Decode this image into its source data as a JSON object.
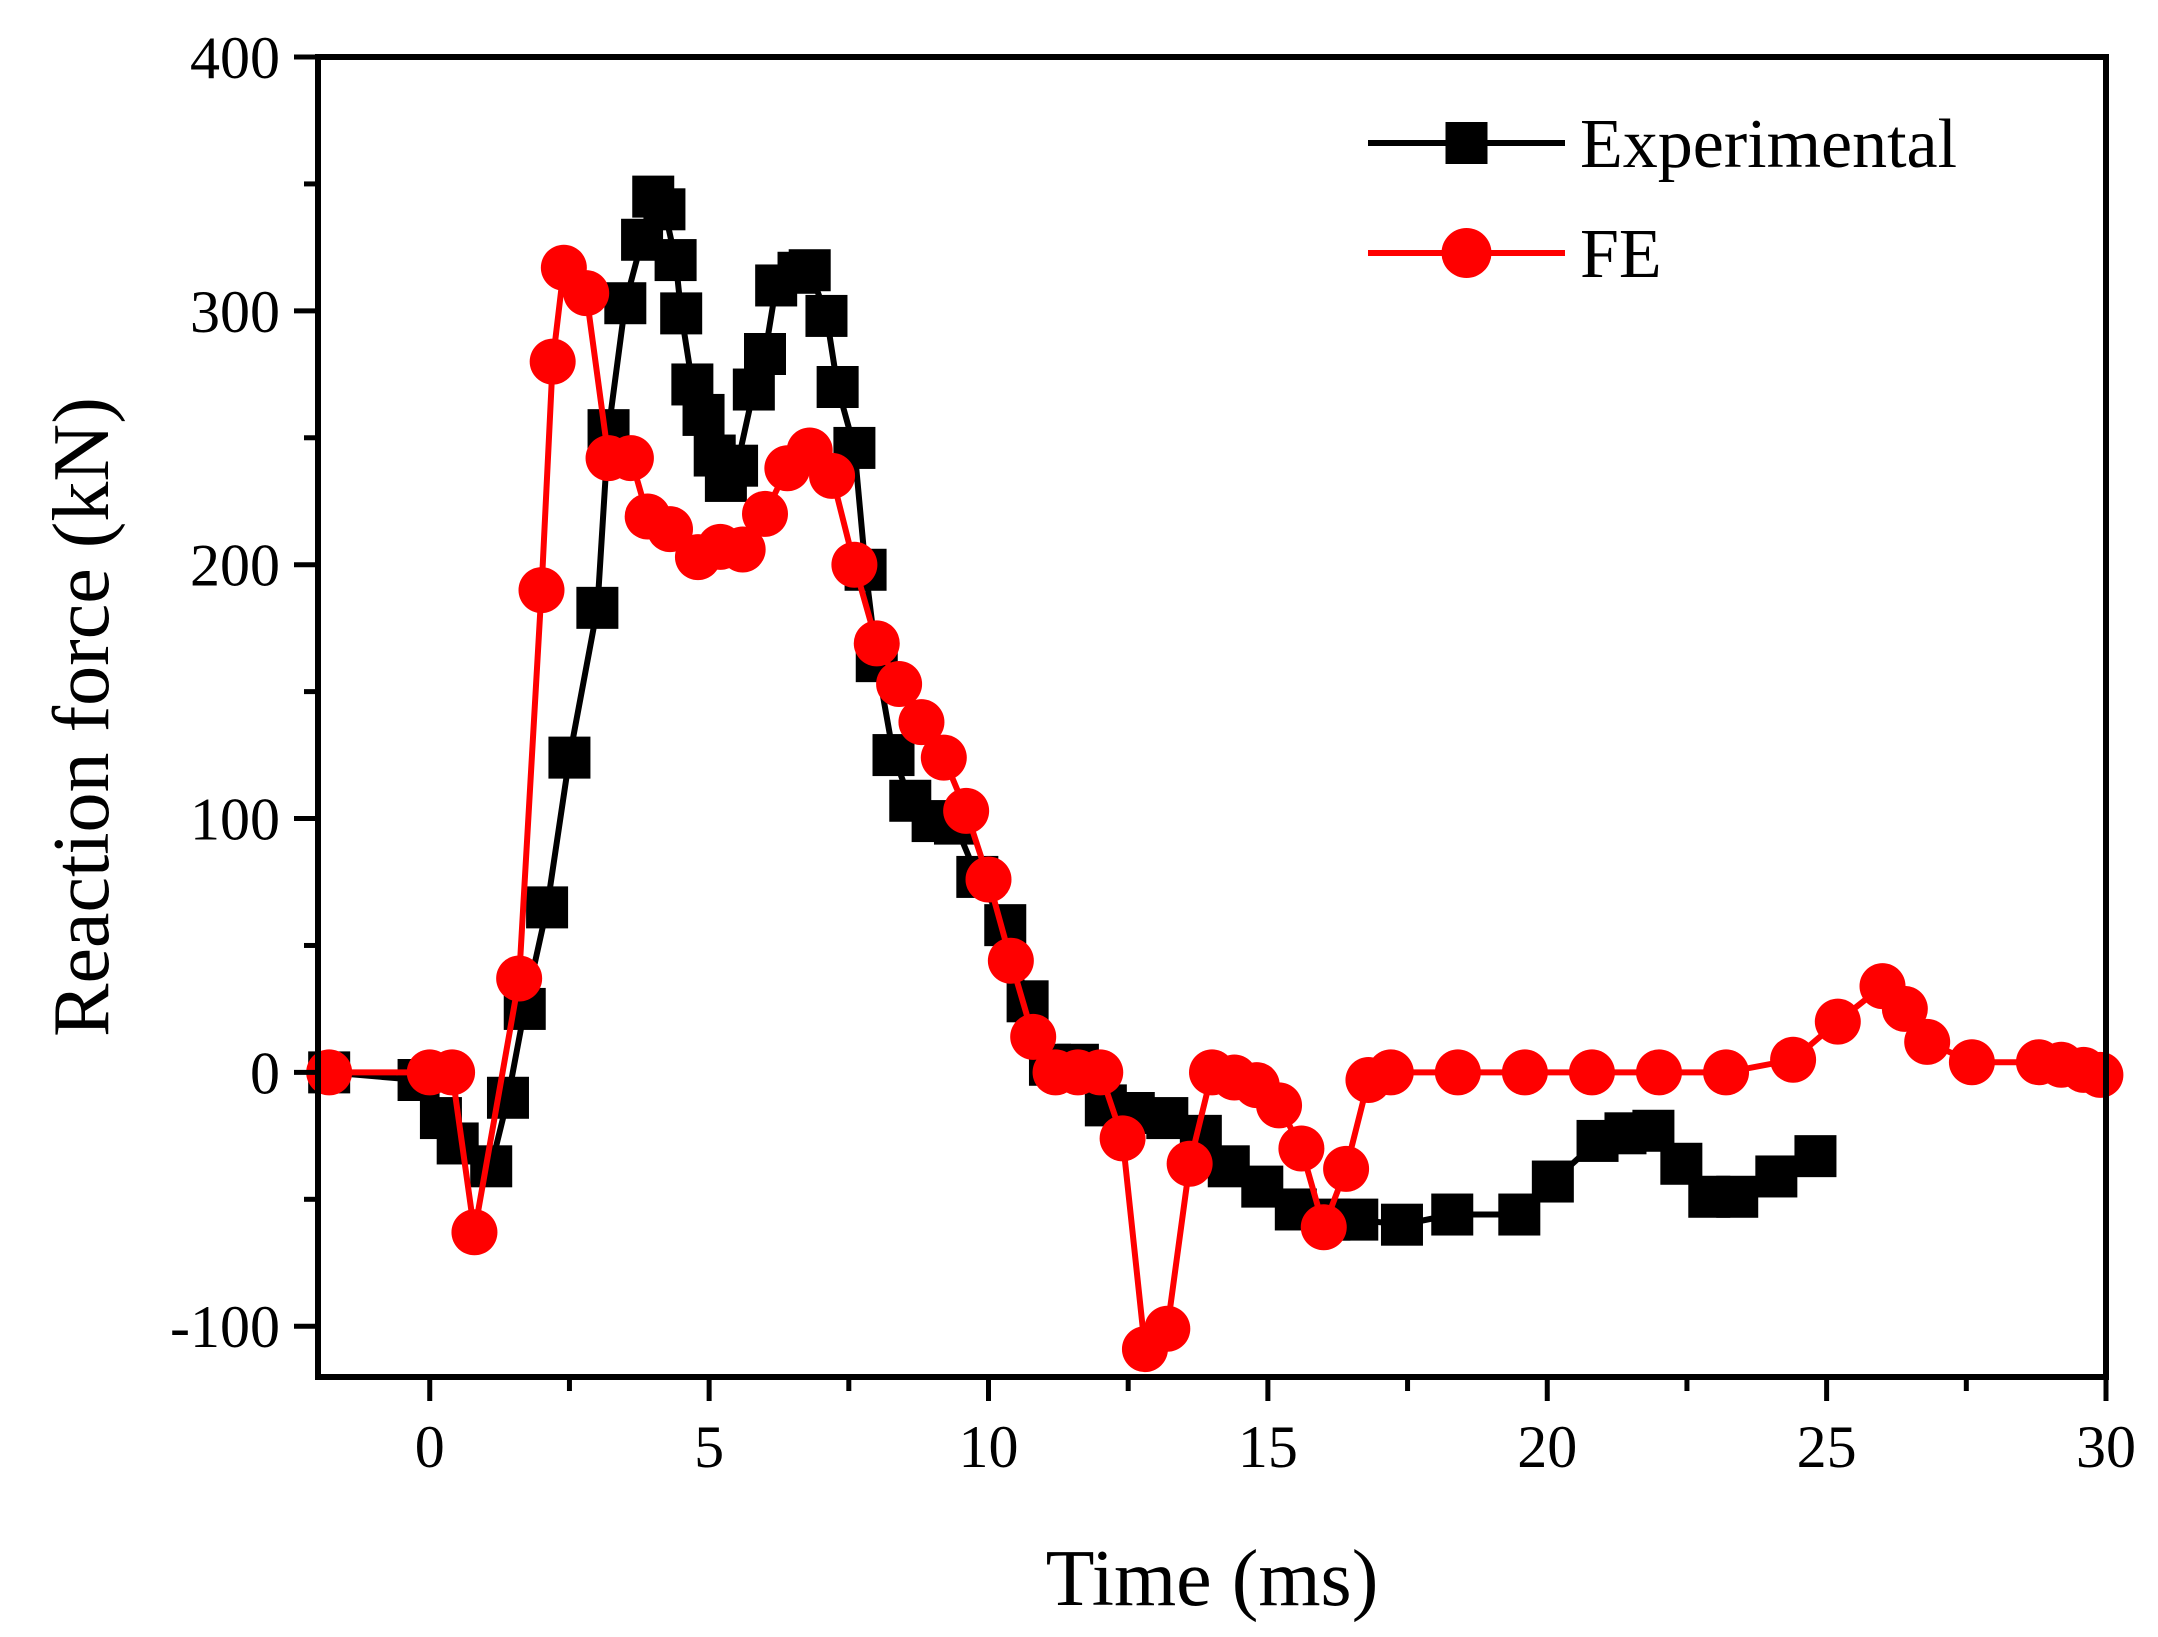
{
  "chart_data": {
    "type": "line",
    "title": "",
    "xlabel": "Time (ms)",
    "ylabel": "Reaction force (kN)",
    "xlim": [
      -2,
      30
    ],
    "ylim": [
      -120,
      400
    ],
    "xticks": [
      0,
      5,
      10,
      15,
      20,
      25,
      30
    ],
    "yticks": [
      -100,
      0,
      100,
      200,
      300,
      400
    ],
    "xtick_labels": [
      "0",
      "5",
      "10",
      "15",
      "20",
      "25",
      "30"
    ],
    "ytick_labels": [
      "-100",
      "0",
      "100",
      "200",
      "300",
      "400"
    ],
    "grid": false,
    "legend_position": "top-right",
    "series": [
      {
        "name": "Experimental",
        "color": "#000000",
        "marker": "square",
        "x": [
          -1.8,
          -0.2,
          0.2,
          0.5,
          1.1,
          1.4,
          1.7,
          2.1,
          2.5,
          3.0,
          3.2,
          3.5,
          3.8,
          4.0,
          4.2,
          4.4,
          4.5,
          4.7,
          4.9,
          5.1,
          5.3,
          5.5,
          5.8,
          6.0,
          6.2,
          6.6,
          6.8,
          7.1,
          7.3,
          7.6,
          7.8,
          8.0,
          8.3,
          8.6,
          9.0,
          9.4,
          9.8,
          10.3,
          10.7,
          11.1,
          11.6,
          12.1,
          12.6,
          13.2,
          13.8,
          14.3,
          14.9,
          15.5,
          16.1,
          16.6,
          17.4,
          18.3,
          19.5,
          20.1,
          20.9,
          21.4,
          21.9,
          22.4,
          22.9,
          23.4,
          24.1,
          24.8
        ],
        "y": [
          0,
          -3,
          -18,
          -28,
          -37,
          -10,
          25,
          65,
          124,
          183,
          253,
          303,
          328,
          345,
          340,
          320,
          299,
          271,
          259,
          243,
          233,
          239,
          269,
          283,
          310,
          315,
          316,
          298,
          270,
          246,
          198,
          162,
          125,
          107,
          99,
          98,
          77,
          58,
          28,
          3,
          3,
          -13,
          -16,
          -18,
          -25,
          -37,
          -45,
          -54,
          -58,
          -58,
          -60,
          -56,
          -56,
          -43,
          -27,
          -24,
          -23,
          -36,
          -49,
          -49,
          -41,
          -33
        ]
      },
      {
        "name": "FE",
        "color": "#ff0000",
        "marker": "circle",
        "x": [
          -1.8,
          0.0,
          0.4,
          0.8,
          1.6,
          2.0,
          2.2,
          2.4,
          2.8,
          3.2,
          3.6,
          3.9,
          4.3,
          4.8,
          5.2,
          5.6,
          6.0,
          6.4,
          6.8,
          7.2,
          7.6,
          8.0,
          8.4,
          8.8,
          9.2,
          9.6,
          10.0,
          10.4,
          10.8,
          11.2,
          11.6,
          12.0,
          12.4,
          12.8,
          13.2,
          13.6,
          14.0,
          14.4,
          14.8,
          15.2,
          15.6,
          16.0,
          16.4,
          16.8,
          17.2,
          18.4,
          19.6,
          20.8,
          22.0,
          23.2,
          24.4,
          25.2,
          26.0,
          26.4,
          26.8,
          27.6,
          28.8,
          29.2,
          29.6,
          29.9
        ],
        "y": [
          0,
          0,
          0,
          -63,
          37,
          190,
          280,
          317,
          307,
          242,
          242,
          219,
          214,
          203,
          207,
          206,
          220,
          238,
          245,
          235,
          200,
          169,
          153,
          138,
          124,
          103,
          76,
          44,
          14,
          0,
          0,
          0,
          -26,
          -109,
          -101,
          -36,
          0,
          -2,
          -5,
          -13,
          -30,
          -61,
          -38,
          -3,
          0,
          0,
          0,
          0,
          0,
          0,
          5,
          20,
          34,
          25,
          12,
          4,
          4,
          3,
          1,
          -1
        ]
      }
    ]
  }
}
